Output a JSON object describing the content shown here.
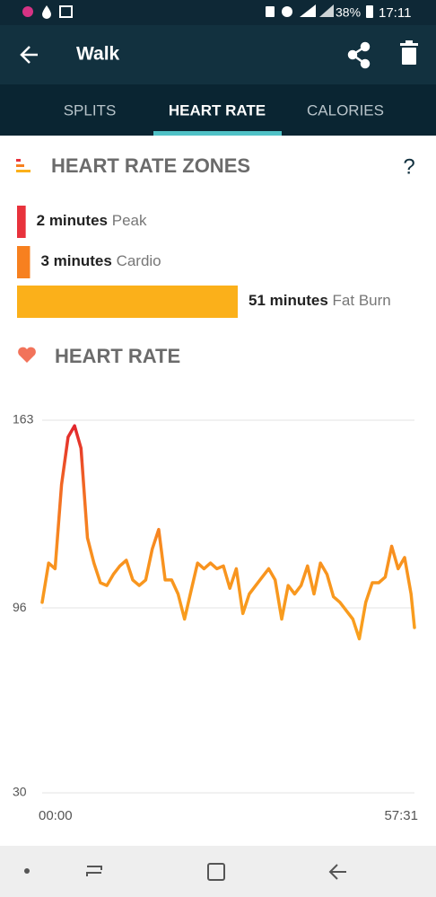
{
  "status_bar": {
    "battery": "38%",
    "time": "17:11"
  },
  "header": {
    "title": "Walk"
  },
  "tabs": [
    {
      "label": "SPLITS"
    },
    {
      "label": "HEART RATE",
      "active": true
    },
    {
      "label": "CALORIES"
    }
  ],
  "zones_section": {
    "title": "HEART RATE ZONES",
    "help": "?",
    "zones": [
      {
        "value": 2,
        "label": "2 minutes",
        "zone": "Peak",
        "color": "#e8323c"
      },
      {
        "value": 3,
        "label": "3 minutes",
        "zone": "Cardio",
        "color": "#f7801f"
      },
      {
        "value": 51,
        "label": "51 minutes",
        "zone": "Fat Burn",
        "color": "#fbb01a"
      }
    ]
  },
  "heart_rate_chart": {
    "type": "line",
    "title": "HEART RATE",
    "x": [
      0,
      1,
      2,
      3,
      4,
      5,
      6,
      7,
      8,
      9,
      10,
      11,
      12,
      13,
      14,
      15,
      16,
      17,
      18,
      19,
      20,
      21,
      22,
      23,
      24,
      25,
      26,
      27,
      28,
      29,
      30,
      31,
      32,
      33,
      34,
      35,
      36,
      37,
      38,
      39,
      40,
      41,
      42,
      43,
      44,
      45,
      46,
      47,
      48,
      49,
      50,
      51,
      52,
      53,
      54,
      55,
      56,
      57,
      57.52
    ],
    "values": [
      98,
      112,
      110,
      140,
      157,
      161,
      153,
      121,
      112,
      105,
      104,
      108,
      111,
      113,
      106,
      104,
      106,
      117,
      124,
      106,
      106,
      101,
      92,
      102,
      112,
      110,
      112,
      110,
      111,
      103,
      110,
      94,
      101,
      104,
      107,
      110,
      106,
      92,
      104,
      101,
      104,
      111,
      101,
      112,
      108,
      100,
      98,
      95,
      92,
      85,
      98,
      105,
      105,
      107,
      118,
      110,
      114,
      101,
      89
    ],
    "xlim": [
      0,
      57.52
    ],
    "xticks": [
      {
        "value": 0,
        "label": "00:00"
      },
      {
        "value": 57.52,
        "label": "57:31"
      }
    ],
    "ylim": [
      30,
      163
    ],
    "yticks": [
      30,
      96,
      163
    ],
    "grid": true
  }
}
